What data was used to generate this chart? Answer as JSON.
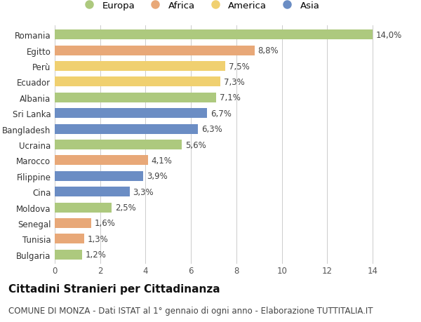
{
  "categories": [
    "Romania",
    "Egitto",
    "Perù",
    "Ecuador",
    "Albania",
    "Sri Lanka",
    "Bangladesh",
    "Ucraina",
    "Marocco",
    "Filippine",
    "Cina",
    "Moldova",
    "Senegal",
    "Tunisia",
    "Bulgaria"
  ],
  "values": [
    14.0,
    8.8,
    7.5,
    7.3,
    7.1,
    6.7,
    6.3,
    5.6,
    4.1,
    3.9,
    3.3,
    2.5,
    1.6,
    1.3,
    1.2
  ],
  "labels": [
    "14,0%",
    "8,8%",
    "7,5%",
    "7,3%",
    "7,1%",
    "6,7%",
    "6,3%",
    "5,6%",
    "4,1%",
    "3,9%",
    "3,3%",
    "2,5%",
    "1,6%",
    "1,3%",
    "1,2%"
  ],
  "continents": [
    "Europa",
    "Africa",
    "America",
    "America",
    "Europa",
    "Asia",
    "Asia",
    "Europa",
    "Africa",
    "Asia",
    "Asia",
    "Europa",
    "Africa",
    "Africa",
    "Europa"
  ],
  "colors": {
    "Europa": "#adc97e",
    "Africa": "#e8a878",
    "America": "#f0d070",
    "Asia": "#6b8dc4"
  },
  "legend_order": [
    "Europa",
    "Africa",
    "America",
    "Asia"
  ],
  "xlim": [
    0,
    15.2
  ],
  "xticks": [
    0,
    2,
    4,
    6,
    8,
    10,
    12,
    14
  ],
  "title": "Cittadini Stranieri per Cittadinanza",
  "subtitle": "COMUNE DI MONZA - Dati ISTAT al 1° gennaio di ogni anno - Elaborazione TUTTITALIA.IT",
  "background_color": "#ffffff",
  "bar_height": 0.62,
  "label_fontsize": 8.5,
  "tick_fontsize": 8.5,
  "title_fontsize": 11,
  "subtitle_fontsize": 8.5
}
